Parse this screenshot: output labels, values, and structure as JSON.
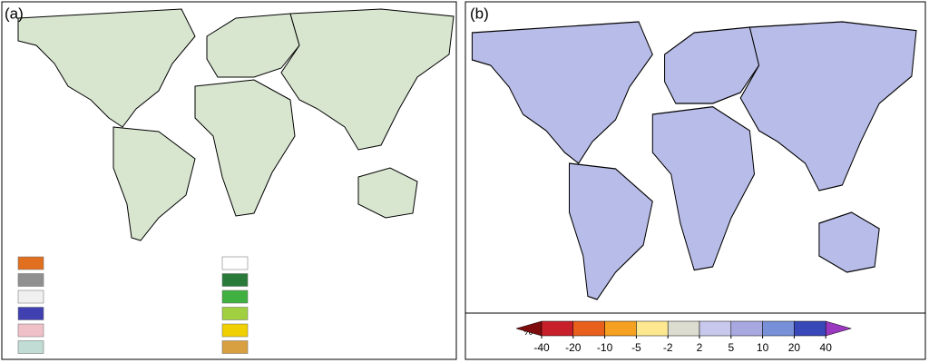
{
  "panels": [
    {
      "label": "(a)",
      "legend_colors": [
        "#e07020",
        "#909090",
        "#f0f0f0",
        "#4040b0",
        "#f0c0c8",
        "#c0dcd4",
        "#ffffff",
        "#2a7a3a",
        "#40b040",
        "#a0d040",
        "#f0d000",
        "#d8a040"
      ]
    },
    {
      "label": "(b)",
      "colorbar": {
        "unit": "%",
        "ticks": [
          -40,
          -20,
          -10,
          -5,
          -2,
          2,
          5,
          10,
          20,
          40
        ],
        "colors": [
          "#7f0d0d",
          "#c8202a",
          "#e8601c",
          "#f5a020",
          "#fde890",
          "#dcdcd0",
          "#c8c8ec",
          "#a8a8e0",
          "#7890d8",
          "#3848b8",
          "#9a38c0"
        ]
      }
    }
  ]
}
